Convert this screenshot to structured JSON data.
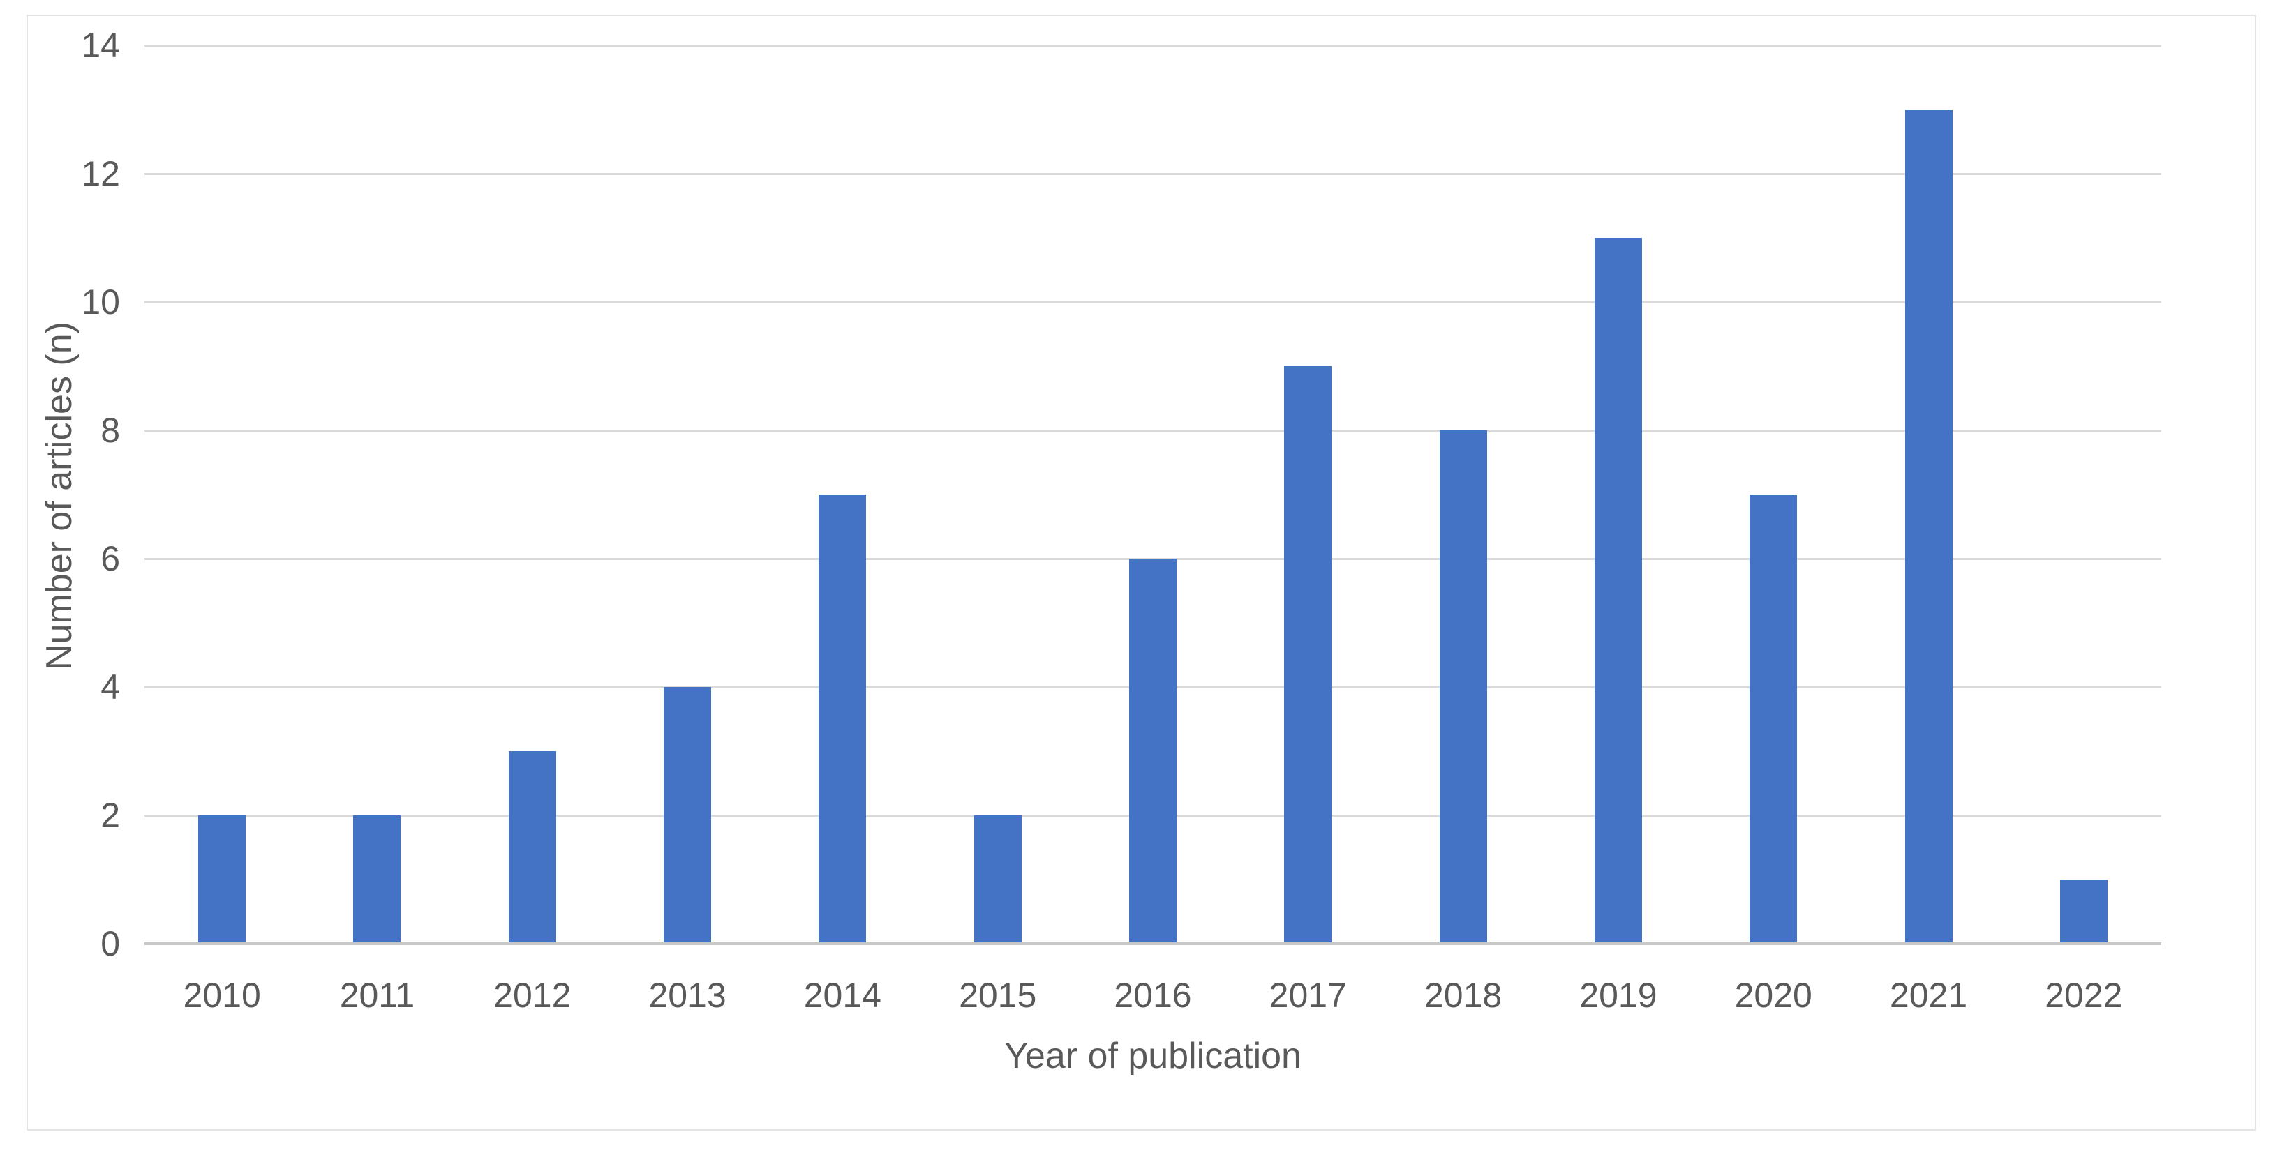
{
  "chart_data": {
    "type": "bar",
    "title": "",
    "categories": [
      "2010",
      "2011",
      "2012",
      "2013",
      "2014",
      "2015",
      "2016",
      "2017",
      "2018",
      "2019",
      "2020",
      "2021",
      "2022"
    ],
    "values": [
      2,
      2,
      3,
      4,
      7,
      2,
      6,
      9,
      8,
      11,
      7,
      13,
      1
    ],
    "xlabel": "Year of publication",
    "ylabel": "Number of articles (n)",
    "ylim": [
      0,
      14
    ],
    "yticks": [
      0,
      2,
      4,
      6,
      8,
      10,
      12,
      14
    ],
    "grid": "horizontal",
    "legend": "none",
    "colors": {
      "bar": "#4472C4",
      "gridline": "#D9D9D9",
      "axis_line": "#C6C6C6",
      "text": "#595959",
      "chart_border": "#E4E4E4",
      "background": "#FFFFFF"
    }
  }
}
